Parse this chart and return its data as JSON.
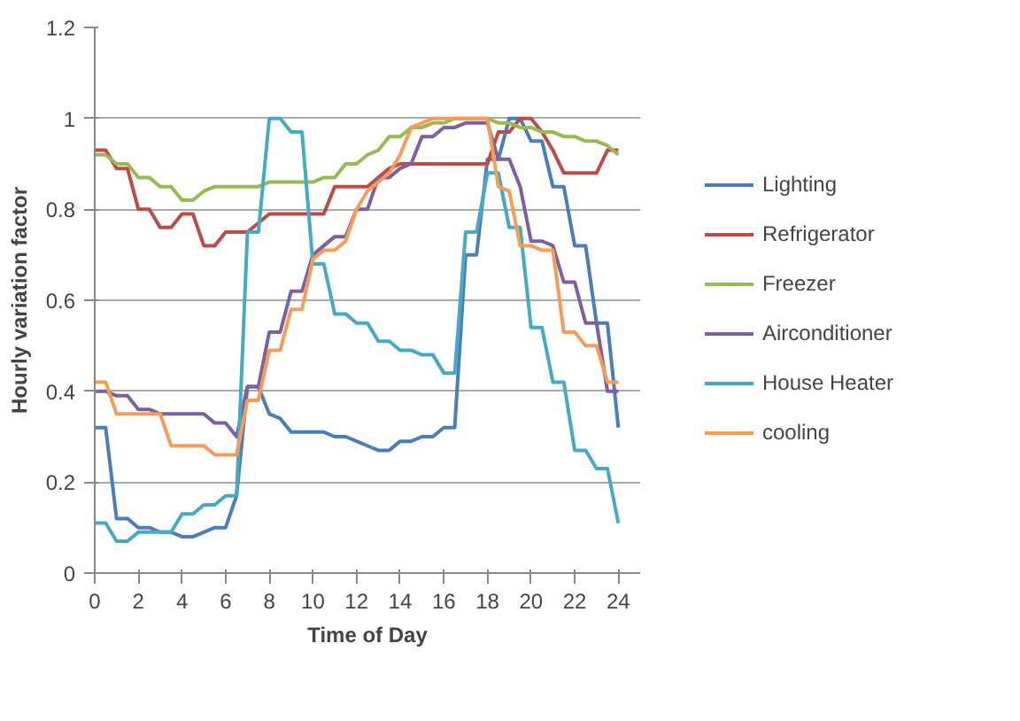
{
  "chart_data": {
    "type": "line",
    "xlabel": "Time of Day",
    "ylabel": "Hourly variation factor",
    "x": [
      0,
      0.5,
      1,
      1.5,
      2,
      2.5,
      3,
      3.5,
      4,
      4.5,
      5,
      5.5,
      6,
      6.5,
      7,
      7.5,
      8,
      8.5,
      9,
      9.5,
      10,
      10.5,
      11,
      11.5,
      12,
      12.5,
      13,
      13.5,
      14,
      14.5,
      15,
      15.5,
      16,
      16.5,
      17,
      17.5,
      18,
      18.5,
      19,
      19.5,
      20,
      20.5,
      21,
      21.5,
      22,
      22.5,
      23,
      23.5,
      24
    ],
    "series": [
      {
        "name": "Lighting",
        "color": "#4a7ebb",
        "values": [
          0.32,
          0.32,
          0.12,
          0.12,
          0.1,
          0.1,
          0.09,
          0.09,
          0.08,
          0.08,
          0.09,
          0.1,
          0.1,
          0.17,
          0.41,
          0.41,
          0.35,
          0.34,
          0.31,
          0.31,
          0.31,
          0.31,
          0.3,
          0.3,
          0.29,
          0.28,
          0.27,
          0.27,
          0.29,
          0.29,
          0.3,
          0.3,
          0.32,
          0.32,
          0.7,
          0.7,
          0.91,
          0.91,
          1.0,
          1.0,
          0.95,
          0.95,
          0.85,
          0.85,
          0.72,
          0.72,
          0.55,
          0.55,
          0.32
        ]
      },
      {
        "name": "Refrigerator",
        "color": "#be4b48",
        "values": [
          0.93,
          0.93,
          0.89,
          0.89,
          0.8,
          0.8,
          0.76,
          0.76,
          0.79,
          0.79,
          0.72,
          0.72,
          0.75,
          0.75,
          0.75,
          0.77,
          0.79,
          0.79,
          0.79,
          0.79,
          0.79,
          0.79,
          0.85,
          0.85,
          0.85,
          0.85,
          0.87,
          0.89,
          0.9,
          0.9,
          0.9,
          0.9,
          0.9,
          0.9,
          0.9,
          0.9,
          0.9,
          0.97,
          0.97,
          1.0,
          1.0,
          0.97,
          0.93,
          0.88,
          0.88,
          0.88,
          0.88,
          0.93,
          0.93
        ]
      },
      {
        "name": "Freezer",
        "color": "#98b954",
        "values": [
          0.92,
          0.92,
          0.9,
          0.9,
          0.87,
          0.87,
          0.85,
          0.85,
          0.82,
          0.82,
          0.84,
          0.85,
          0.85,
          0.85,
          0.85,
          0.85,
          0.86,
          0.86,
          0.86,
          0.86,
          0.86,
          0.87,
          0.87,
          0.9,
          0.9,
          0.92,
          0.93,
          0.96,
          0.96,
          0.98,
          0.98,
          0.99,
          0.99,
          1.0,
          1.0,
          1.0,
          1.0,
          0.99,
          0.99,
          0.98,
          0.98,
          0.97,
          0.97,
          0.96,
          0.96,
          0.95,
          0.95,
          0.94,
          0.92
        ]
      },
      {
        "name": "Airconditioner",
        "color": "#7d60a0",
        "values": [
          0.4,
          0.4,
          0.39,
          0.39,
          0.36,
          0.36,
          0.35,
          0.35,
          0.35,
          0.35,
          0.35,
          0.33,
          0.33,
          0.3,
          0.41,
          0.41,
          0.53,
          0.53,
          0.62,
          0.62,
          0.7,
          0.72,
          0.74,
          0.74,
          0.8,
          0.8,
          0.87,
          0.87,
          0.89,
          0.9,
          0.96,
          0.96,
          0.98,
          0.98,
          0.99,
          0.99,
          0.99,
          0.91,
          0.91,
          0.85,
          0.73,
          0.73,
          0.72,
          0.64,
          0.64,
          0.55,
          0.55,
          0.4,
          0.4
        ]
      },
      {
        "name": "House Heater",
        "color": "#46aac5",
        "values": [
          0.11,
          0.11,
          0.07,
          0.07,
          0.09,
          0.09,
          0.09,
          0.09,
          0.13,
          0.13,
          0.15,
          0.15,
          0.17,
          0.17,
          0.75,
          0.75,
          1.0,
          1.0,
          0.97,
          0.97,
          0.68,
          0.68,
          0.57,
          0.57,
          0.55,
          0.55,
          0.51,
          0.51,
          0.49,
          0.49,
          0.48,
          0.48,
          0.44,
          0.44,
          0.75,
          0.75,
          0.88,
          0.88,
          0.76,
          0.76,
          0.54,
          0.54,
          0.42,
          0.42,
          0.27,
          0.27,
          0.23,
          0.23,
          0.11
        ]
      },
      {
        "name": "cooling",
        "color": "#f59d56",
        "values": [
          0.42,
          0.42,
          0.35,
          0.35,
          0.35,
          0.35,
          0.35,
          0.28,
          0.28,
          0.28,
          0.28,
          0.26,
          0.26,
          0.26,
          0.38,
          0.38,
          0.49,
          0.49,
          0.58,
          0.58,
          0.69,
          0.71,
          0.71,
          0.73,
          0.8,
          0.84,
          0.86,
          0.88,
          0.92,
          0.98,
          0.99,
          1.0,
          1.0,
          1.0,
          1.0,
          1.0,
          1.0,
          0.85,
          0.84,
          0.72,
          0.72,
          0.71,
          0.71,
          0.53,
          0.53,
          0.5,
          0.5,
          0.42,
          0.42
        ]
      }
    ],
    "xlim": [
      0,
      25
    ],
    "xticks": [
      0,
      2,
      4,
      6,
      8,
      10,
      12,
      14,
      16,
      18,
      20,
      22,
      24
    ],
    "ylim": [
      0,
      1.2
    ],
    "yticks": [
      0,
      0.2,
      0.4,
      0.6,
      0.8,
      1,
      1.2
    ],
    "grid": "y",
    "legend": "right",
    "marker": "none",
    "line_style": "solid"
  }
}
